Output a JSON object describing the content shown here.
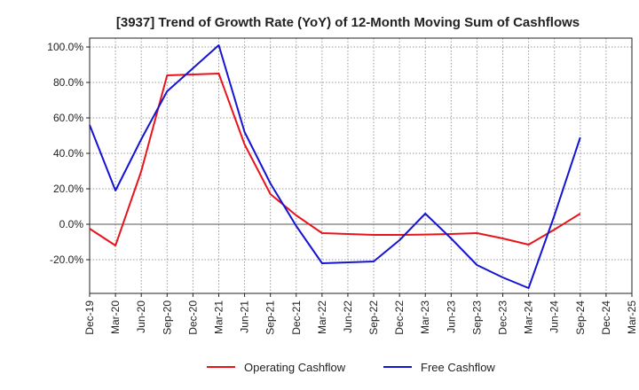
{
  "chart_data": {
    "type": "line",
    "title": "[3937]  Trend of Growth Rate (YoY) of 12-Month Moving Sum of Cashflows",
    "x": [
      "Dec-19",
      "Mar-20",
      "Jun-20",
      "Sep-20",
      "Dec-20",
      "Mar-21",
      "Jun-21",
      "Sep-21",
      "Dec-21",
      "Mar-22",
      "Jun-22",
      "Sep-22",
      "Dec-22",
      "Mar-23",
      "Jun-23",
      "Sep-23",
      "Dec-23",
      "Mar-24",
      "Jun-24",
      "Sep-24",
      "Dec-24",
      "Mar-25"
    ],
    "y_ticks": [
      "100.0%",
      "80.0%",
      "60.0%",
      "40.0%",
      "20.0%",
      "0.0%",
      "-20.0%"
    ],
    "y_tick_values": [
      100,
      80,
      60,
      40,
      20,
      0,
      -20
    ],
    "ylim": [
      -39,
      105
    ],
    "grid": true,
    "legend_position": "bottom",
    "series": [
      {
        "name": "Operating Cashflow",
        "color": "#e8141c",
        "values": [
          -2.5,
          -12,
          30,
          84,
          84.5,
          85,
          45,
          17,
          5,
          -5,
          -5.5,
          -6,
          -6,
          -5.8,
          -5.5,
          -5,
          -8,
          -11.5,
          -3,
          6,
          null,
          null
        ]
      },
      {
        "name": "Free Cashflow",
        "color": "#1414d2",
        "values": [
          56,
          19,
          48,
          75,
          88,
          101,
          52,
          23,
          -1,
          -22,
          -21.5,
          -21,
          -9,
          6,
          -8,
          -23,
          -30,
          -36,
          5,
          49,
          null,
          null
        ]
      }
    ]
  }
}
